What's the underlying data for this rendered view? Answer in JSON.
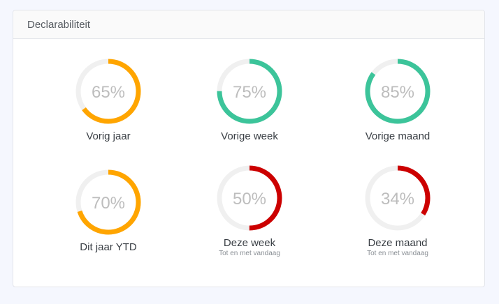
{
  "card": {
    "title": "Declarabiliteit"
  },
  "colors": {
    "track": "#f0f0f0",
    "orange": "#ffa500",
    "green": "#3cc49a",
    "red": "#cc0000"
  },
  "gauges": [
    {
      "id": "vorig-jaar",
      "value": 65,
      "text": "65%",
      "label": "Vorig jaar",
      "sublabel": "",
      "color": "#ffa500"
    },
    {
      "id": "vorige-week",
      "value": 75,
      "text": "75%",
      "label": "Vorige week",
      "sublabel": "",
      "color": "#3cc49a"
    },
    {
      "id": "vorige-maand",
      "value": 85,
      "text": "85%",
      "label": "Vorige maand",
      "sublabel": "",
      "color": "#3cc49a"
    },
    {
      "id": "dit-jaar-ytd",
      "value": 70,
      "text": "70%",
      "label": "Dit jaar YTD",
      "sublabel": "",
      "color": "#ffa500"
    },
    {
      "id": "deze-week",
      "value": 50,
      "text": "50%",
      "label": "Deze week",
      "sublabel": "Tot en met vandaag",
      "color": "#cc0000"
    },
    {
      "id": "deze-maand",
      "value": 34,
      "text": "34%",
      "label": "Deze maand",
      "sublabel": "Tot en met vandaag",
      "color": "#cc0000"
    }
  ]
}
